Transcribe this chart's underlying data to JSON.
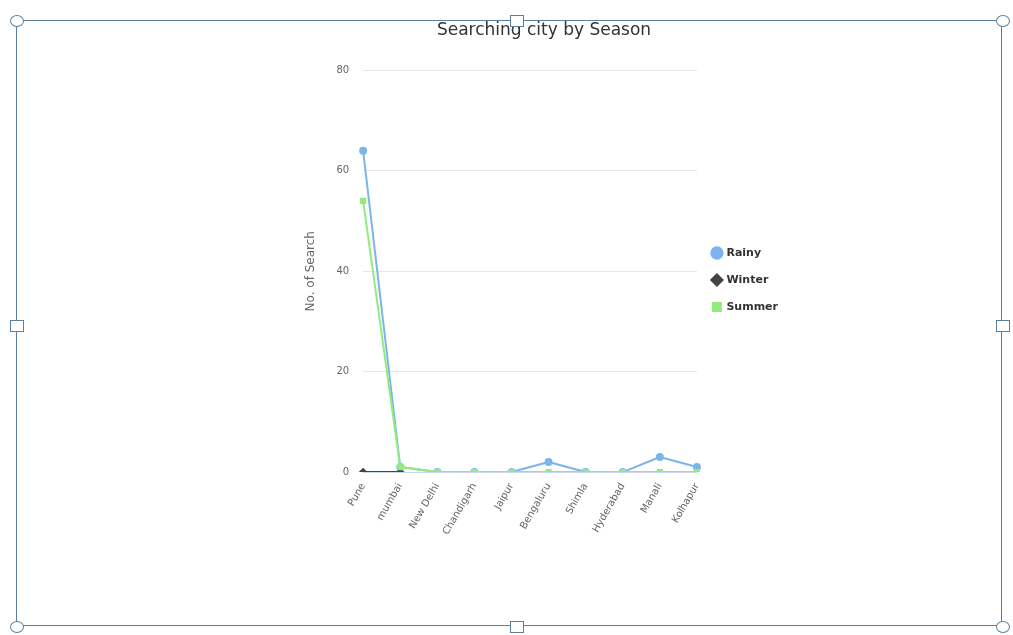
{
  "chart_data": {
    "type": "line",
    "title": "Searching city by Season",
    "ylabel": "No. of Search",
    "categories": [
      "Pune",
      "mumbai",
      "New Delhi",
      "Chandigarh",
      "Jaipur",
      "Bengaluru",
      "Shimla",
      "Hyderabad",
      "Manali",
      "Kolhapur"
    ],
    "series": [
      {
        "name": "Rainy",
        "color": "#7cb5ec",
        "marker": "circle",
        "values": [
          64,
          1,
          0,
          0,
          0,
          2,
          0,
          0,
          3,
          1
        ]
      },
      {
        "name": "Winter",
        "color": "#434348",
        "marker": "diamond",
        "values": [
          0,
          0,
          null,
          null,
          null,
          null,
          null,
          null,
          null,
          null
        ]
      },
      {
        "name": "Summer",
        "color": "#90ed7d",
        "marker": "square",
        "values": [
          54,
          1,
          0,
          0,
          0,
          0,
          0,
          0,
          0,
          0
        ]
      }
    ],
    "ylim": [
      0,
      80
    ],
    "yticks": [
      0,
      20,
      40,
      60,
      80
    ],
    "grid": "y",
    "legend": "right"
  }
}
